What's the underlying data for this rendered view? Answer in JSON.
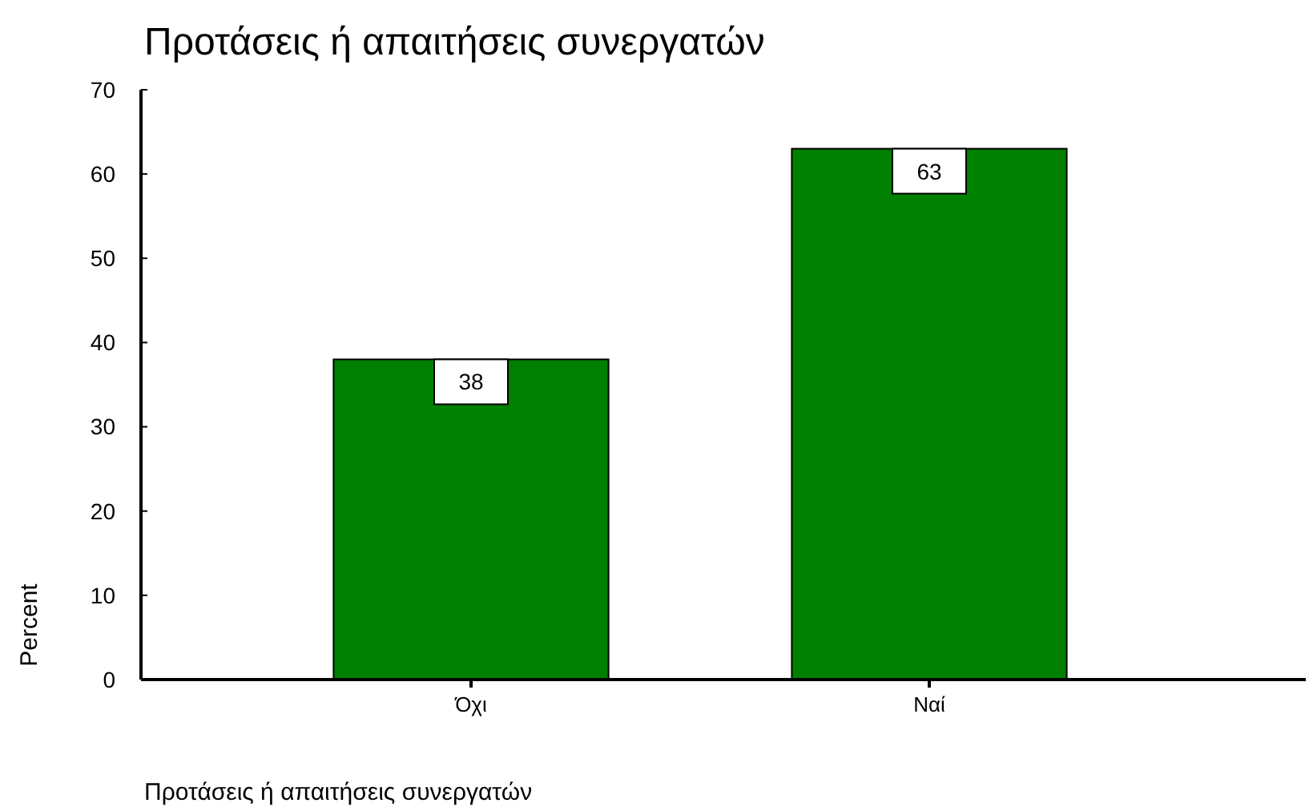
{
  "chart_data": {
    "type": "bar",
    "title": "Προτάσεις ή απαιτήσεις συνεργατών",
    "xlabel": "Προτάσεις ή απαιτήσεις συνεργατών",
    "ylabel": "Percent",
    "categories": [
      "Όχι",
      "Ναί"
    ],
    "values": [
      38,
      63
    ],
    "color": "#008000",
    "ylim": [
      0,
      70
    ],
    "yticks": [
      0,
      10,
      20,
      30,
      40,
      50,
      60,
      70
    ],
    "grid": false,
    "data_labels": true
  }
}
